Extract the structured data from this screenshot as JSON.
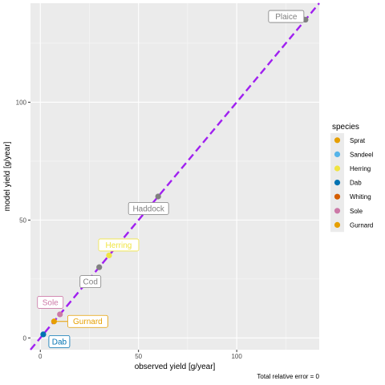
{
  "chart_data": {
    "type": "scatter",
    "xlabel": "observed yield [g/year]",
    "ylabel": "model yield [g/year]",
    "xlim": [
      -5,
      142
    ],
    "ylim": [
      -5,
      142
    ],
    "x_ticks": [
      0,
      50,
      100
    ],
    "y_ticks": [
      0,
      50,
      100
    ],
    "grid": true,
    "caption": "Total relative error = 0",
    "reference_line": {
      "slope": 1,
      "intercept": 0,
      "color": "#A020F0",
      "style": "dashed"
    },
    "points": [
      {
        "label": "Plaice",
        "x": 135,
        "y": 135,
        "color": "#808080"
      },
      {
        "label": "Haddock",
        "x": 60,
        "y": 60,
        "color": "#808080"
      },
      {
        "label": "Herring",
        "x": 35,
        "y": 35,
        "color": "#F0E442"
      },
      {
        "label": "Cod",
        "x": 30,
        "y": 30,
        "color": "#808080"
      },
      {
        "label": "Sole",
        "x": 10,
        "y": 10,
        "color": "#CC79A7"
      },
      {
        "label": "Gurnard",
        "x": 7,
        "y": 7,
        "color": "#E69F00"
      },
      {
        "label": "Dab",
        "x": 1.5,
        "y": 1.5,
        "color": "#0072B2"
      }
    ],
    "legend": {
      "title": "species",
      "position": "right",
      "entries": [
        {
          "label": "Sprat",
          "color": "#E69F00"
        },
        {
          "label": "Sandeel",
          "color": "#56B4E9"
        },
        {
          "label": "Herring",
          "color": "#F0E442"
        },
        {
          "label": "Dab",
          "color": "#0072B2"
        },
        {
          "label": "Whiting",
          "color": "#D55E00"
        },
        {
          "label": "Sole",
          "color": "#CC79A7"
        },
        {
          "label": "Gurnard",
          "color": "#E69F00"
        }
      ]
    }
  }
}
